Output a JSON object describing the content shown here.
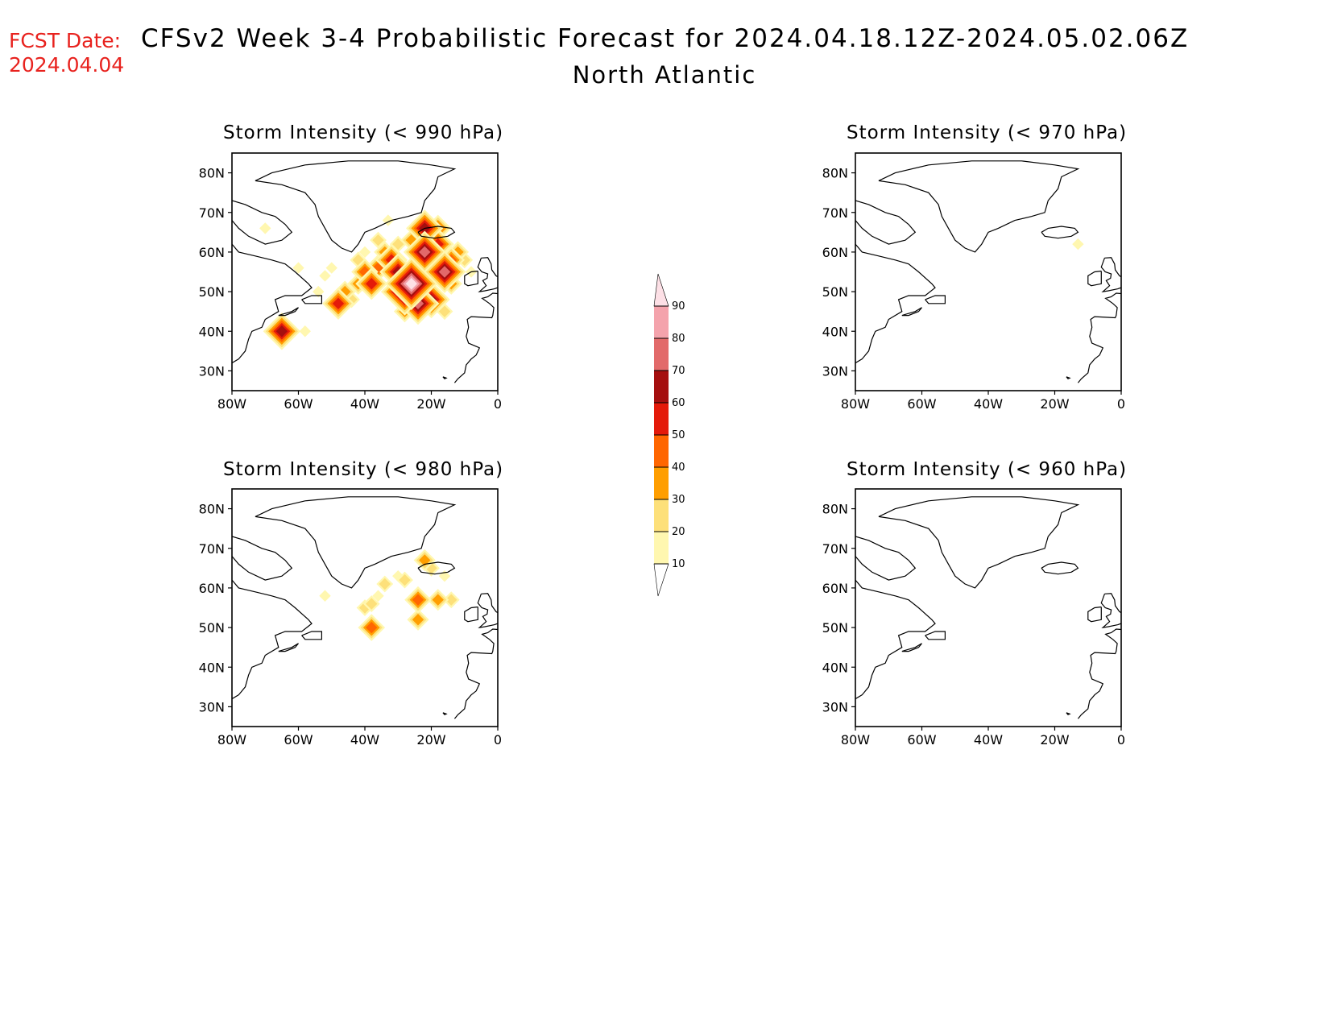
{
  "header": {
    "fcst_label": "FCST Date:",
    "fcst_date": "2024.04.04",
    "title": "CFSv2 Week 3-4 Probabilistic Forecast for 2024.04.18.12Z-2024.05.02.06Z",
    "region": "North Atlantic"
  },
  "axes": {
    "lat_ticks": [
      "80N",
      "70N",
      "60N",
      "50N",
      "40N",
      "30N"
    ],
    "lon_ticks": [
      "80W",
      "60W",
      "40W",
      "20W",
      "0"
    ]
  },
  "panels": [
    {
      "id": "p990",
      "title": "Storm Intensity (< 990 hPa)",
      "level": "high"
    },
    {
      "id": "p970",
      "title": "Storm Intensity (< 970 hPa)",
      "level": "trace"
    },
    {
      "id": "p980",
      "title": "Storm Intensity (< 980 hPa)",
      "level": "low"
    },
    {
      "id": "p960",
      "title": "Storm Intensity (< 960 hPa)",
      "level": "none"
    }
  ],
  "colorbar": {
    "labels": [
      "90",
      "80",
      "70",
      "60",
      "50",
      "40",
      "30",
      "20",
      "10"
    ],
    "colors": [
      "#fde0e6",
      "#f4a3ac",
      "#e26a6a",
      "#a50f0f",
      "#e41a0a",
      "#ff6600",
      "#ff9e00",
      "#fde07a",
      "#fff7b0"
    ]
  }
}
